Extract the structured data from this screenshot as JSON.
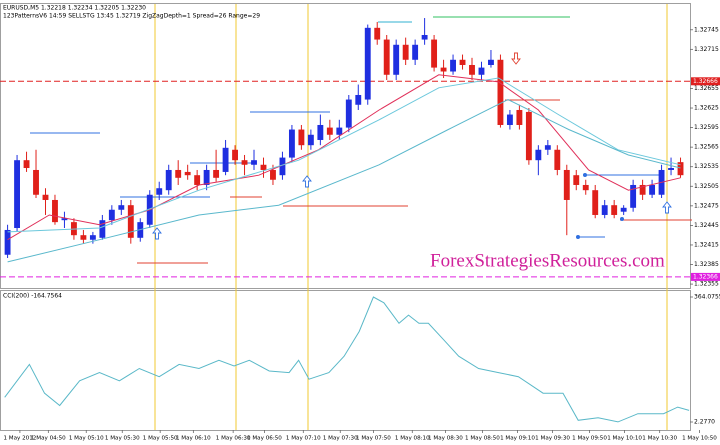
{
  "chart_data": [
    {
      "type": "candlestick",
      "title": "EURUSD,M5  1.32218 1.32234 1.32205 1.32230",
      "subtitle": "123PatternsV6  14:59  SELLSTG  13:45  1.32719  ZigZagDepth=1  Spread=26  Range=29",
      "annotation": "ForexStrategiesResources.com",
      "up_color": "#1f2fe0",
      "down_color": "#e0201a",
      "open": [
        1.324,
        1.32441,
        1.32545,
        1.3253,
        1.32492,
        1.32484,
        1.32453,
        1.3245,
        1.3243,
        1.32423,
        1.32426,
        1.32453,
        1.32469,
        1.32476,
        1.32426,
        1.32446,
        1.32492,
        1.32499,
        1.3253,
        1.32527,
        1.32522,
        1.32507,
        1.3253,
        1.32527,
        1.32561,
        1.32545,
        1.32538,
        1.32538,
        1.3253,
        1.32522,
        1.32549,
        1.32592,
        1.32568,
        1.32576,
        1.32595,
        1.32584,
        1.32595,
        1.3263,
        1.32638,
        1.32748,
        1.3273,
        1.32676,
        1.32722,
        1.32699,
        1.3273,
        1.3273,
        1.32687,
        1.32681,
        1.32699,
        1.32691,
        1.32676,
        1.32691,
        1.32699,
        1.32599,
        1.32622,
        1.32619,
        1.32545,
        1.32561,
        1.32561,
        1.3253,
        1.32522,
        1.32507,
        1.32499,
        1.32461,
        1.32476,
        1.32466,
        1.32472,
        1.32507,
        1.32492,
        1.32492,
        1.3253,
        1.32542
      ],
      "high": [
        1.32446,
        1.32553,
        1.32558,
        1.32561,
        1.32502,
        1.32492,
        1.32466,
        1.32456,
        1.32438,
        1.32435,
        1.32461,
        1.32476,
        1.32484,
        1.32484,
        1.32456,
        1.32499,
        1.32512,
        1.32538,
        1.32545,
        1.32538,
        1.3253,
        1.32538,
        1.32561,
        1.32576,
        1.32568,
        1.32553,
        1.32561,
        1.32549,
        1.32538,
        1.32558,
        1.32599,
        1.32599,
        1.32592,
        1.32615,
        1.32607,
        1.32607,
        1.32645,
        1.32661,
        1.32753,
        1.32757,
        1.32737,
        1.3273,
        1.32733,
        1.3273,
        1.32763,
        1.32737,
        1.32699,
        1.32707,
        1.32707,
        1.32702,
        1.32696,
        1.32714,
        1.32707,
        1.32622,
        1.3263,
        1.32625,
        1.32568,
        1.32576,
        1.32568,
        1.32538,
        1.3253,
        1.32515,
        1.32507,
        1.32484,
        1.32484,
        1.32476,
        1.32515,
        1.32515,
        1.32515,
        1.32538,
        1.32549,
        1.32549
      ],
      "low": [
        1.32395,
        1.32435,
        1.32527,
        1.32487,
        1.32461,
        1.32446,
        1.32441,
        1.32423,
        1.32417,
        1.32417,
        1.32423,
        1.32446,
        1.32461,
        1.32417,
        1.3242,
        1.32441,
        1.32484,
        1.32492,
        1.32507,
        1.32515,
        1.32499,
        1.32499,
        1.32512,
        1.32522,
        1.32538,
        1.32522,
        1.3253,
        1.32518,
        1.32507,
        1.32515,
        1.32542,
        1.32561,
        1.32561,
        1.32568,
        1.32576,
        1.32576,
        1.32588,
        1.32622,
        1.3263,
        1.32722,
        1.32668,
        1.32668,
        1.32691,
        1.32691,
        1.32722,
        1.32681,
        1.32671,
        1.32676,
        1.32684,
        1.32668,
        1.32668,
        1.32687,
        1.32595,
        1.32592,
        1.32592,
        1.32538,
        1.32522,
        1.32553,
        1.32522,
        1.3243,
        1.32499,
        1.32492,
        1.32456,
        1.32456,
        1.32456,
        1.32461,
        1.32466,
        1.32484,
        1.32487,
        1.32487,
        1.32522,
        1.32518
      ],
      "close": [
        1.32438,
        1.32545,
        1.32533,
        1.32492,
        1.32484,
        1.3245,
        1.32456,
        1.3243,
        1.32423,
        1.3243,
        1.32453,
        1.32469,
        1.32476,
        1.32426,
        1.3245,
        1.32492,
        1.32502,
        1.3253,
        1.32518,
        1.32522,
        1.32507,
        1.3253,
        1.32518,
        1.32564,
        1.32545,
        1.32538,
        1.32545,
        1.3253,
        1.32515,
        1.32549,
        1.32592,
        1.32568,
        1.32584,
        1.32599,
        1.32584,
        1.32595,
        1.32638,
        1.32645,
        1.32748,
        1.3273,
        1.32676,
        1.32722,
        1.32699,
        1.32722,
        1.32737,
        1.32687,
        1.32681,
        1.32699,
        1.32691,
        1.32676,
        1.32687,
        1.32699,
        1.32599,
        1.32615,
        1.32599,
        1.32545,
        1.32561,
        1.32568,
        1.3253,
        1.32484,
        1.32507,
        1.32499,
        1.32461,
        1.32476,
        1.32461,
        1.32472,
        1.32507,
        1.32492,
        1.32507,
        1.3253,
        1.32533,
        1.32522
      ],
      "overlays": [
        {
          "color": "#e0305a",
          "x": [
            0,
            4.4,
            9.7,
            15,
            20.2,
            26.5,
            32.8,
            39.2,
            45.5,
            51.8,
            56,
            61.3,
            65.5,
            71
          ],
          "values": [
            1.32423,
            1.32461,
            1.32446,
            1.32469,
            1.32507,
            1.32522,
            1.32561,
            1.32622,
            1.32676,
            1.32665,
            1.32622,
            1.3253,
            1.32499,
            1.32518
          ]
        },
        {
          "color": "#6cc8dc",
          "x": [
            0,
            9.7,
            20.2,
            30.7,
            39.2,
            45.5,
            51.8,
            58.1,
            64.4,
            71
          ],
          "values": [
            1.32435,
            1.32441,
            1.32499,
            1.32545,
            1.32607,
            1.32656,
            1.32671,
            1.32615,
            1.32561,
            1.32538
          ]
        },
        {
          "color": "#5ab8cc",
          "x": [
            0,
            9.7,
            20.2,
            28.6,
            39.2,
            46.5,
            52.8,
            59.2,
            65.5,
            71
          ],
          "values": [
            1.32389,
            1.32423,
            1.32461,
            1.32476,
            1.32538,
            1.32592,
            1.32638,
            1.32592,
            1.32553,
            1.32533
          ]
        }
      ],
      "hlines": [
        {
          "value": 1.32666,
          "color": "#e02020"
        },
        {
          "value": 1.32366,
          "color": "#e020e0"
        }
      ],
      "xlim": [
        -0.8,
        72
      ],
      "ylim": [
        1.32349,
        1.32783
      ],
      "yticks": [
        1.32745,
        1.32715,
        1.32655,
        1.32625,
        1.32595,
        1.32565,
        1.32535,
        1.32505,
        1.32475,
        1.32445,
        1.32415,
        1.32385,
        1.32355
      ]
    },
    {
      "type": "line",
      "title": "CCI(200) -164.7564",
      "color": "#5ab8c8",
      "x": [
        -0.3,
        2.3,
        3.9,
        5.5,
        7.6,
        9.7,
        11.8,
        13.9,
        16,
        18.1,
        20.2,
        22.3,
        23.9,
        25.5,
        27.6,
        29.7,
        30.7,
        31.8,
        33.9,
        35.5,
        37.1,
        38.6,
        39.7,
        41.3,
        42.3,
        43.4,
        44.4,
        46,
        47.6,
        49.7,
        51.8,
        53.9,
        56.5,
        58.6,
        60.2,
        62.3,
        64.4,
        66.5,
        69.2,
        70.7,
        71.9
      ],
      "values": [
        73.8,
        169.0,
        85.7,
        50.0,
        121.4,
        145.2,
        121.4,
        157.1,
        133.3,
        169.0,
        157.1,
        180.9,
        164.3,
        180.9,
        150.0,
        145.2,
        180.9,
        126.2,
        145.2,
        192.8,
        264.2,
        364.1,
        347.4,
        288.0,
        311.7,
        288.0,
        288.0,
        240.4,
        192.8,
        157.1,
        145.2,
        133.3,
        85.7,
        85.7,
        7.2,
        14.3,
        2.5,
        26.3,
        26.3,
        45.3,
        35.8
      ],
      "xlim": [
        -0.8,
        72
      ],
      "ylim": [
        2.277,
        364.0755
      ],
      "yticks": [
        {
          "value": 2.277,
          "label": "2.2770"
        },
        364.0755
      ],
      "xticks": [
        {
          "value": 1.3,
          "label": "1 May 2012"
        },
        {
          "value": 4.3,
          "label": "1 May 04:50"
        },
        {
          "value": 8.3,
          "label": "1 May 05:10"
        },
        {
          "value": 12.1,
          "label": "1 May 05:30"
        },
        {
          "value": 16.1,
          "label": "1 May 05:50"
        },
        {
          "value": 19.6,
          "label": "1 May 06:10"
        },
        {
          "value": 23.8,
          "label": "1 May 06:30"
        },
        {
          "value": 27.1,
          "label": "1 May 06:50"
        },
        {
          "value": 31.2,
          "label": "1 May 07:10"
        },
        {
          "value": 35.1,
          "label": "1 May 07:30"
        },
        {
          "value": 38.6,
          "label": "1 May 07:50"
        },
        {
          "value": 42.7,
          "label": "1 May 08:10"
        },
        {
          "value": 46.2,
          "label": "1 May 08:30"
        },
        {
          "value": 50.1,
          "label": "1 May 08:50"
        },
        {
          "value": 53.8,
          "label": "1 May 09:10"
        },
        {
          "value": 57.5,
          "label": "1 May 09:30"
        },
        {
          "value": 61.4,
          "label": "1 May 09:50"
        },
        {
          "value": 65.1,
          "label": "1 May 10:10"
        },
        {
          "value": 68.8,
          "label": "1 May 10:30"
        },
        {
          "value": 73.0,
          "label": "1 May 10:50"
        }
      ]
    }
  ]
}
